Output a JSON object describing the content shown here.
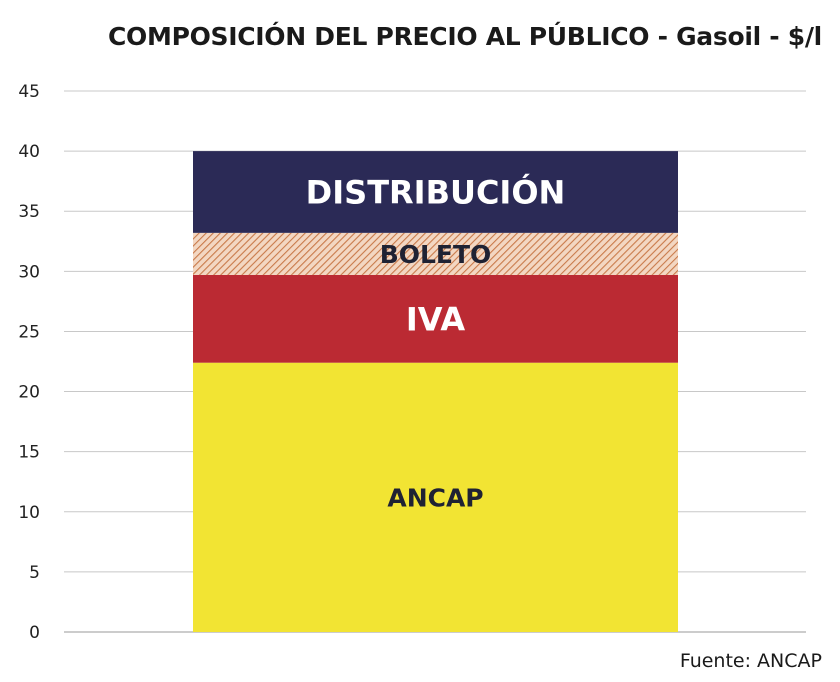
{
  "chart_data": {
    "type": "bar",
    "stacked": true,
    "title": "COMPOSICIÓN DEL PRECIO AL PÚBLICO - Gasoil - $/l",
    "xlabel": "",
    "ylabel": "",
    "ylim": [
      0,
      45
    ],
    "yticks": [
      0,
      5,
      10,
      15,
      20,
      25,
      30,
      35,
      40,
      45
    ],
    "grid": true,
    "categories": [
      ""
    ],
    "series": [
      {
        "name": "ANCAP",
        "values": [
          22.4
        ],
        "color": "#f2e433",
        "label_color": "#1f2233",
        "pattern": "solid"
      },
      {
        "name": "IVA",
        "values": [
          7.3
        ],
        "color": "#bb2a33",
        "label_color": "#ffffff",
        "pattern": "solid"
      },
      {
        "name": "BOLETO",
        "values": [
          3.5
        ],
        "color": "#dca07a",
        "label_color": "#1f2233",
        "pattern": "hatched"
      },
      {
        "name": "DISTRIBUCIÓN",
        "values": [
          6.8
        ],
        "color": "#2b2a56",
        "label_color": "#ffffff",
        "pattern": "solid"
      }
    ]
  },
  "source": "Fuente: ANCAP"
}
